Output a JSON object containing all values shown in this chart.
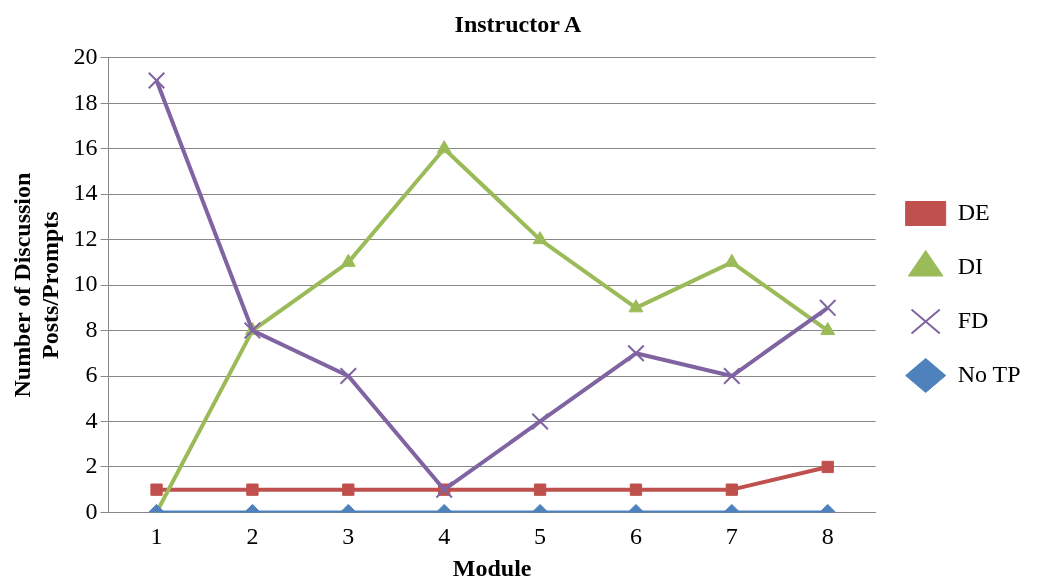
{
  "chart_data": {
    "type": "line",
    "title": "Instructor A",
    "xlabel": "Module",
    "ylabel": "Number of Discussion Posts/Prompts",
    "categories": [
      "1",
      "2",
      "3",
      "4",
      "5",
      "6",
      "7",
      "8"
    ],
    "series": [
      {
        "name": "DE",
        "color": "#c0504d",
        "marker": "square",
        "values": [
          1,
          1,
          1,
          1,
          1,
          1,
          1,
          2
        ]
      },
      {
        "name": "DI",
        "color": "#9bbb59",
        "marker": "triangle",
        "values": [
          0,
          8,
          11,
          16,
          12,
          9,
          11,
          8
        ]
      },
      {
        "name": "FD",
        "color": "#8064a2",
        "marker": "cross",
        "values": [
          19,
          8,
          6,
          1,
          4,
          7,
          6,
          9
        ]
      },
      {
        "name": "No TP",
        "color": "#4f81bd",
        "marker": "diamond",
        "values": [
          0,
          0,
          0,
          0,
          0,
          0,
          0,
          0
        ]
      }
    ],
    "ylim": [
      0,
      20
    ],
    "yticks": [
      0,
      2,
      4,
      6,
      8,
      10,
      12,
      14,
      16,
      18,
      20
    ],
    "grid": "y",
    "legend": "right",
    "line_style": "solid"
  }
}
